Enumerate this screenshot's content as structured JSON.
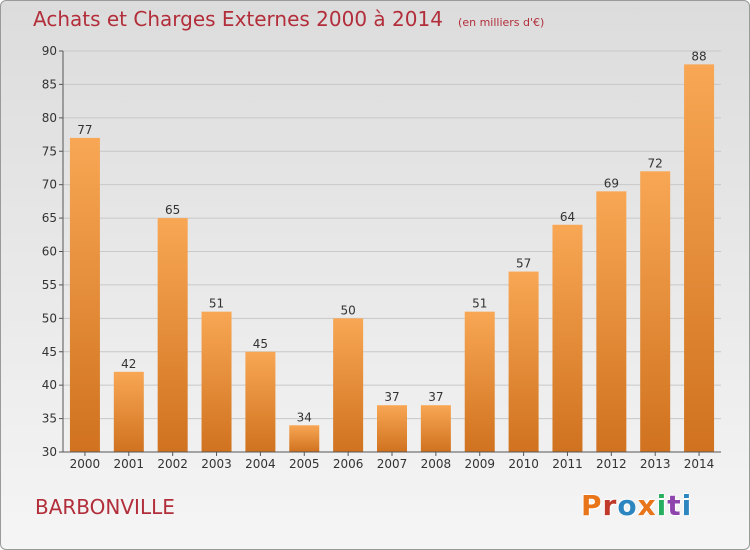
{
  "header": {
    "title": "Achats et Charges Externes 2000 à 2014",
    "subtitle": "(en milliers d'€)"
  },
  "footer": {
    "commune": "BARBONVILLE",
    "logo_text": "Proxiti",
    "logo_colors": [
      "#e8751a",
      "#c0392b",
      "#2e86c1",
      "#e8751a",
      "#27ae60",
      "#8e44ad",
      "#2e86c1"
    ]
  },
  "colors": {
    "bar_light": "#f8a754",
    "bar_dark": "#d0721f",
    "grid": "#c8c8c8",
    "axis": "#555555",
    "title": "#b22e3a"
  },
  "chart_data": {
    "type": "bar",
    "categories": [
      "2000",
      "2001",
      "2002",
      "2003",
      "2004",
      "2005",
      "2006",
      "2007",
      "2008",
      "2009",
      "2010",
      "2011",
      "2012",
      "2013",
      "2014"
    ],
    "values": [
      77,
      42,
      65,
      51,
      45,
      34,
      50,
      37,
      37,
      51,
      57,
      64,
      69,
      72,
      88
    ],
    "ylim": [
      30,
      90
    ],
    "yticks": [
      30,
      35,
      40,
      45,
      50,
      55,
      60,
      65,
      70,
      75,
      80,
      85,
      90
    ],
    "grid": true,
    "data_labels": true
  }
}
